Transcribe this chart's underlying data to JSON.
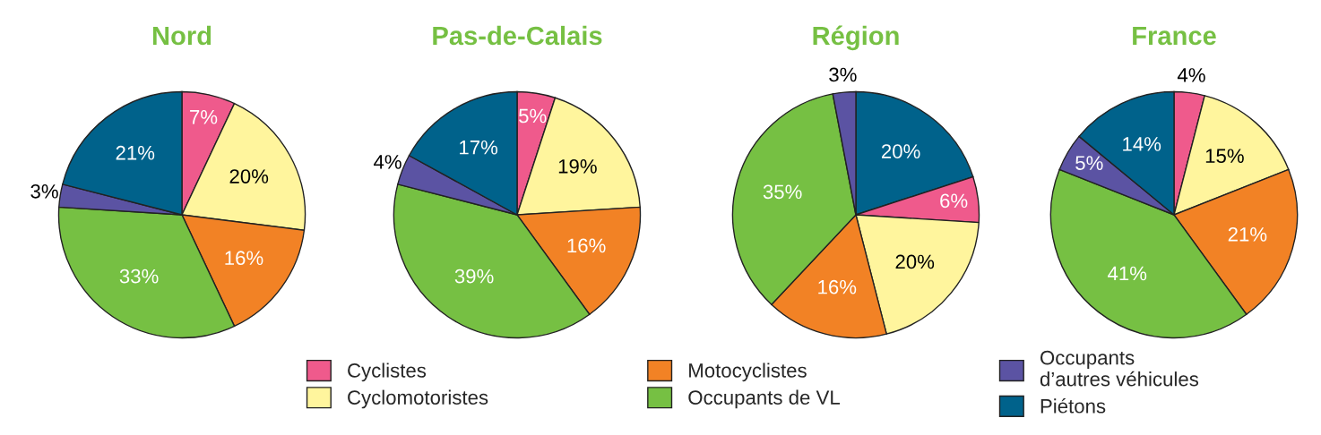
{
  "chart_data": [
    {
      "type": "pie",
      "title": "Nord",
      "categories": [
        "Cyclistes",
        "Cyclomotoristes",
        "Motocyclistes",
        "Occupants de VL",
        "Occupants\nd’autres véhicules",
        "Piétons"
      ],
      "values": [
        7,
        20,
        16,
        33,
        3,
        21
      ],
      "value_labels": [
        "7%",
        "20%",
        "16%",
        "33%",
        "3%",
        "21%"
      ],
      "colors": [
        "#ef5a8c",
        "#fff59d",
        "#f28225",
        "#76c043",
        "#5b53a3",
        "#00628b"
      ],
      "legend": "bottom"
    },
    {
      "type": "pie",
      "title": "Pas-de-Calais",
      "categories": [
        null,
        null,
        null,
        null,
        null,
        null
      ],
      "values": [
        5,
        19,
        16,
        39,
        4,
        17
      ],
      "value_labels": [
        "5%",
        "19%",
        "16%",
        "39%",
        "4%",
        "17%"
      ],
      "colors": [
        "#ef5a8c",
        "#fff59d",
        "#f28225",
        "#76c043",
        "#5b53a3",
        "#00628b"
      ]
    },
    {
      "type": "pie",
      "title": "Région",
      "categories": [
        null,
        null,
        null,
        null,
        null,
        null
      ],
      "values": [
        20,
        6,
        20,
        16,
        35,
        3
      ],
      "value_labels": [
        "20%",
        "6%",
        "20%",
        "16%",
        "35%",
        "3%"
      ],
      "colors": [
        "#00628b",
        "#ef5a8c",
        "#fff59d",
        "#f28225",
        "#76c043",
        "#5b53a3"
      ]
    },
    {
      "type": "pie",
      "title": "France",
      "categories": [
        null,
        null,
        null,
        null,
        null,
        null
      ],
      "values": [
        4,
        15,
        21,
        41,
        5,
        14
      ],
      "value_labels": [
        "4%",
        "15%",
        "21%",
        "41%",
        "5%",
        "14%"
      ],
      "colors": [
        "#ef5a8c",
        "#fff59d",
        "#f28225",
        "#76c043",
        "#5b53a3",
        "#00628b"
      ]
    }
  ]
}
